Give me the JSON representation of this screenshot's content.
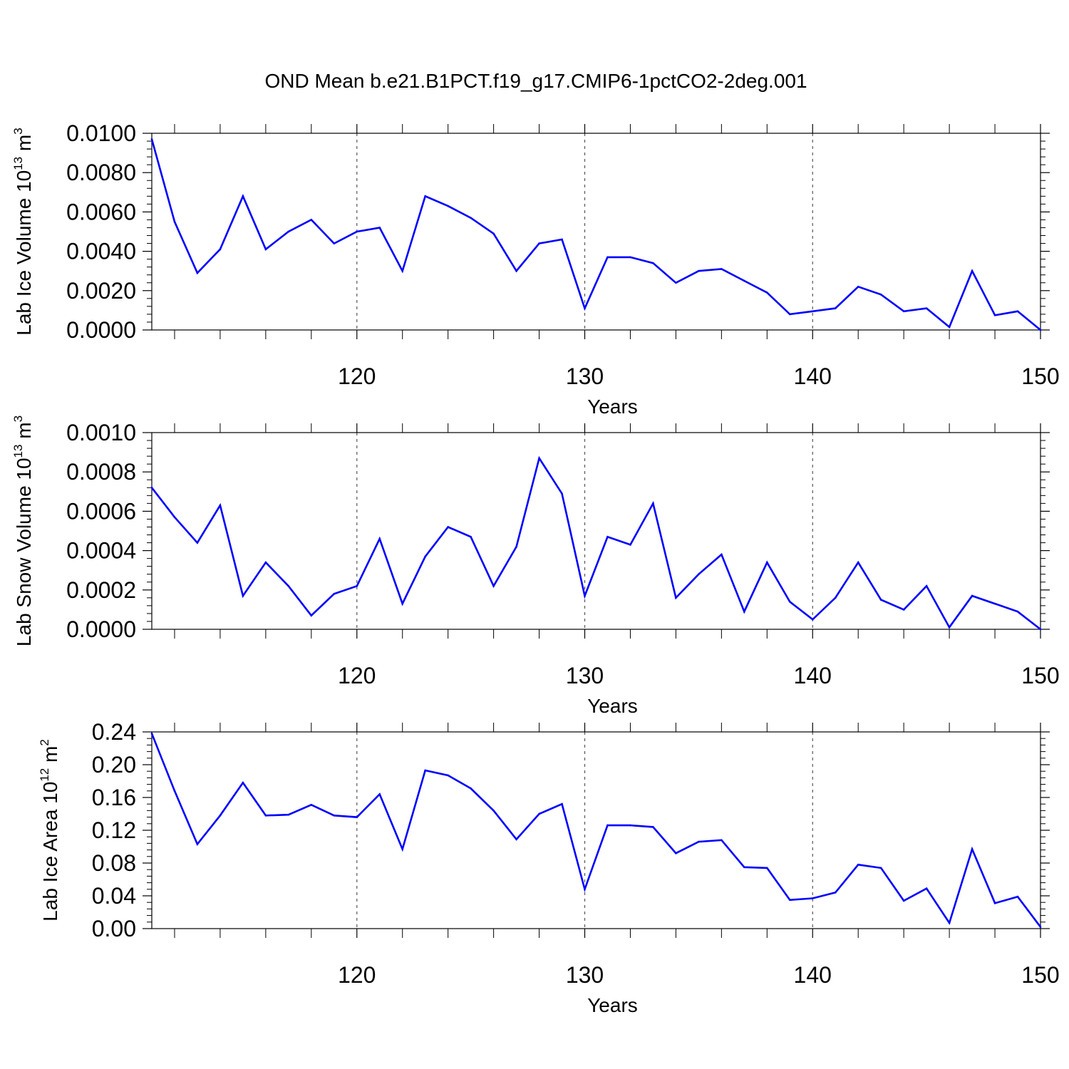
{
  "figure": {
    "title": "OND Mean b.e21.B1PCT.f19_g17.CMIP6-1pctCO2-2deg.001"
  },
  "chart_data": [
    {
      "type": "line",
      "title": "OND Mean b.e21.B1PCT.f19_g17.CMIP6-1pctCO2-2deg.001",
      "xlabel": "Years",
      "ylabel": {
        "text": "Lab Ice Volume 10",
        "exponent": "13",
        "unit": " m",
        "unit_exponent": "3"
      },
      "xlim": [
        111,
        150
      ],
      "ylim": [
        0,
        0.01
      ],
      "grid": "dashed vertical lines at major x ticks",
      "line_color": "#0000ff",
      "x_ticks": [
        120,
        130,
        140,
        150
      ],
      "x_tick_labels": [
        "120",
        "130",
        "140",
        "150"
      ],
      "y_ticks": [
        0,
        0.002,
        0.004,
        0.006,
        0.008,
        0.01
      ],
      "y_tick_labels": [
        "0.0000",
        "0.0020",
        "0.0040",
        "0.0060",
        "0.0080",
        "0.0100"
      ],
      "x": [
        111,
        112,
        113,
        114,
        115,
        116,
        117,
        118,
        119,
        120,
        121,
        122,
        123,
        124,
        125,
        126,
        127,
        128,
        129,
        130,
        131,
        132,
        133,
        134,
        135,
        136,
        137,
        138,
        139,
        140,
        141,
        142,
        143,
        144,
        145,
        146,
        147,
        148,
        149,
        150
      ],
      "series": [
        {
          "name": "Lab Ice Volume",
          "values": [
            0.0097,
            0.0055,
            0.0029,
            0.0041,
            0.0068,
            0.0041,
            0.005,
            0.0056,
            0.0044,
            0.005,
            0.0052,
            0.003,
            0.0068,
            0.0063,
            0.0057,
            0.0049,
            0.003,
            0.0044,
            0.0046,
            0.0011,
            0.0037,
            0.0037,
            0.0034,
            0.0024,
            0.003,
            0.0031,
            0.0025,
            0.0019,
            0.0008,
            0.00095,
            0.0011,
            0.0022,
            0.0018,
            0.00095,
            0.0011,
            0.00015,
            0.003,
            0.00075,
            0.00095,
            0.0
          ]
        }
      ]
    },
    {
      "type": "line",
      "xlabel": "Years",
      "ylabel": {
        "text": "Lab Snow Volume 10",
        "exponent": "13",
        "unit": " m",
        "unit_exponent": "3"
      },
      "xlim": [
        111,
        150
      ],
      "ylim": [
        0,
        0.001
      ],
      "grid": "dashed vertical lines at major x ticks",
      "line_color": "#0000ff",
      "x_ticks": [
        120,
        130,
        140,
        150
      ],
      "x_tick_labels": [
        "120",
        "130",
        "140",
        "150"
      ],
      "y_ticks": [
        0,
        0.0002,
        0.0004,
        0.0006,
        0.0008,
        0.001
      ],
      "y_tick_labels": [
        "0.0000",
        "0.0002",
        "0.0004",
        "0.0006",
        "0.0008",
        "0.0010"
      ],
      "x": [
        111,
        112,
        113,
        114,
        115,
        116,
        117,
        118,
        119,
        120,
        121,
        122,
        123,
        124,
        125,
        126,
        127,
        128,
        129,
        130,
        131,
        132,
        133,
        134,
        135,
        136,
        137,
        138,
        139,
        140,
        141,
        142,
        143,
        144,
        145,
        146,
        147,
        148,
        149,
        150
      ],
      "series": [
        {
          "name": "Lab Snow Volume",
          "values": [
            0.00072,
            0.00057,
            0.00044,
            0.00063,
            0.00017,
            0.00034,
            0.00022,
            7e-05,
            0.00018,
            0.00022,
            0.00046,
            0.00013,
            0.00037,
            0.00052,
            0.00047,
            0.00022,
            0.00042,
            0.00087,
            0.00069,
            0.00017,
            0.00047,
            0.00043,
            0.00064,
            0.00016,
            0.00028,
            0.00038,
            9e-05,
            0.00034,
            0.00014,
            5e-05,
            0.00016,
            0.00034,
            0.00015,
            0.0001,
            0.00022,
            1e-05,
            0.00017,
            0.00013,
            9e-05,
            0.0
          ]
        }
      ]
    },
    {
      "type": "line",
      "xlabel": "Years",
      "ylabel": {
        "text": "Lab Ice Area 10",
        "exponent": "12",
        "unit": " m",
        "unit_exponent": "2"
      },
      "xlim": [
        111,
        150
      ],
      "ylim": [
        0,
        0.24
      ],
      "grid": "dashed vertical lines at major x ticks",
      "line_color": "#0000ff",
      "x_ticks": [
        120,
        130,
        140,
        150
      ],
      "x_tick_labels": [
        "120",
        "130",
        "140",
        "150"
      ],
      "y_ticks": [
        0,
        0.04,
        0.08,
        0.12,
        0.16,
        0.2,
        0.24
      ],
      "y_tick_labels": [
        "0.00",
        "0.04",
        "0.08",
        "0.12",
        "0.16",
        "0.20",
        "0.24"
      ],
      "x": [
        111,
        112,
        113,
        114,
        115,
        116,
        117,
        118,
        119,
        120,
        121,
        122,
        123,
        124,
        125,
        126,
        127,
        128,
        129,
        130,
        131,
        132,
        133,
        134,
        135,
        136,
        137,
        138,
        139,
        140,
        141,
        142,
        143,
        144,
        145,
        146,
        147,
        148,
        149,
        150
      ],
      "series": [
        {
          "name": "Lab Ice Area",
          "values": [
            0.238,
            0.168,
            0.103,
            0.138,
            0.178,
            0.138,
            0.139,
            0.151,
            0.138,
            0.136,
            0.164,
            0.097,
            0.193,
            0.187,
            0.171,
            0.144,
            0.109,
            0.14,
            0.152,
            0.048,
            0.126,
            0.126,
            0.124,
            0.092,
            0.106,
            0.108,
            0.075,
            0.074,
            0.035,
            0.037,
            0.044,
            0.078,
            0.074,
            0.034,
            0.049,
            0.007,
            0.097,
            0.031,
            0.039,
            0.002
          ]
        }
      ]
    }
  ]
}
